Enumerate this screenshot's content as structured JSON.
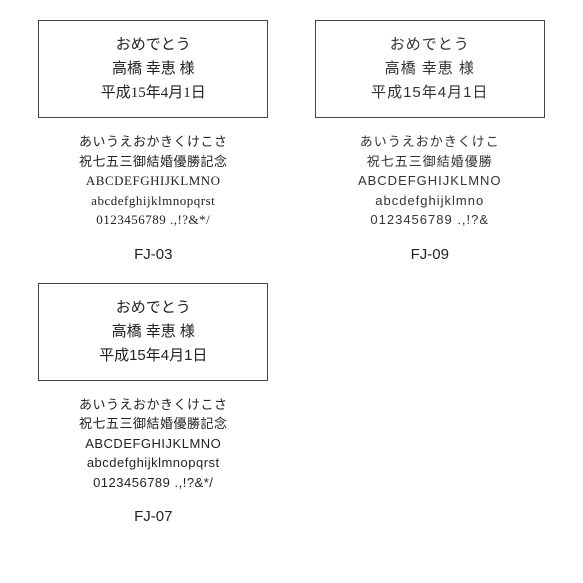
{
  "samples": [
    {
      "code": "FJ-03",
      "fontClass": "serif",
      "glyphClass": "serif-glyph",
      "box": {
        "line1": "おめでとう",
        "line2": "高橋 幸恵 様",
        "line3": "平成15年4月1日"
      },
      "glyphs": {
        "line1": "あいうえおかきくけこさ",
        "line2": "祝七五三御結婚優勝記念",
        "line3": "ABCDEFGHIJKLMNO",
        "line4": "abcdefghijklmnopqrst",
        "line5": "0123456789 .,!?&*/"
      }
    },
    {
      "code": "FJ-09",
      "fontClass": "hand",
      "glyphClass": "hand-glyph",
      "box": {
        "line1": "おめでとう",
        "line2": "高橋 幸恵 様",
        "line3": "平成15年4月1日"
      },
      "glyphs": {
        "line1": "あいうえおかきくけこ",
        "line2": "祝七五三御結婚優勝",
        "line3": "ABCDEFGHIJKLMNO",
        "line4": "abcdefghijklmno",
        "line5": "0123456789 .,!?&"
      }
    },
    {
      "code": "FJ-07",
      "fontClass": "sans",
      "glyphClass": "sans-glyph",
      "box": {
        "line1": "おめでとう",
        "line2": "高橋 幸恵 様",
        "line3": "平成15年4月1日"
      },
      "glyphs": {
        "line1": "あいうえおかきくけこさ",
        "line2": "祝七五三御結婚優勝記念",
        "line3": "ABCDEFGHIJKLMNO",
        "line4": "abcdefghijklmnopqrst",
        "line5": "0123456789 .,!?&*/"
      }
    }
  ]
}
